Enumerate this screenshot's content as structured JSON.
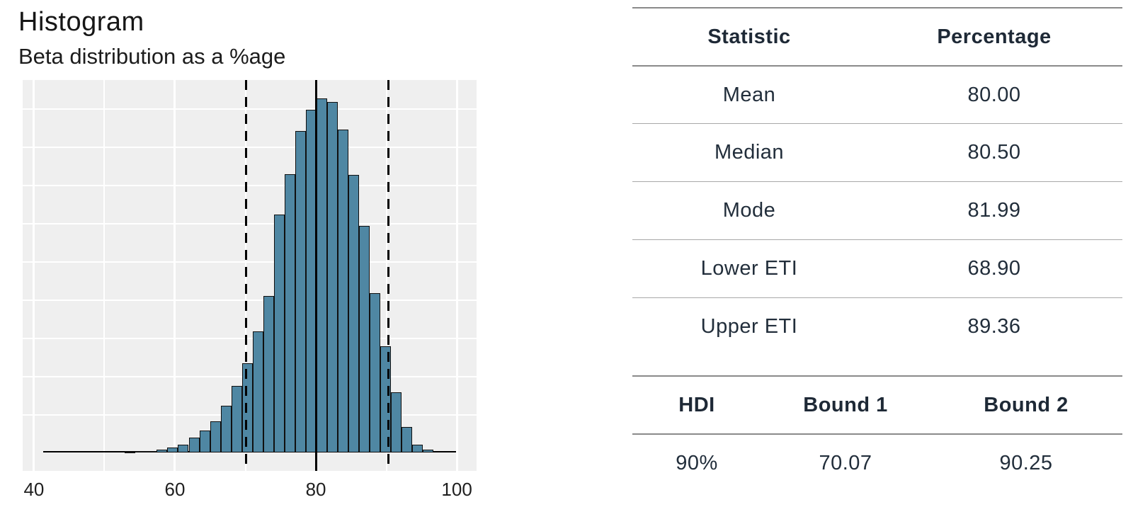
{
  "chart_data": {
    "type": "bar",
    "title": "Histogram",
    "subtitle": "Beta distribution as a %age",
    "xlabel": "",
    "ylabel": "",
    "x_ticks": [
      40,
      60,
      80,
      100
    ],
    "x_axis_range": [
      38.4,
      102.8
    ],
    "grid": true,
    "bin_start": 52.9,
    "bin_width": 1.51,
    "bar_heights_rel": [
      0.002,
      0.004,
      0.004,
      0.008,
      0.014,
      0.022,
      0.042,
      0.062,
      0.088,
      0.132,
      0.188,
      0.252,
      0.342,
      0.442,
      0.672,
      0.786,
      0.908,
      0.968,
      1.0,
      0.99,
      0.912,
      0.784,
      0.64,
      0.45,
      0.3,
      0.17,
      0.072,
      0.022,
      0.008
    ],
    "baseline_span": [
      41.3,
      99.9
    ],
    "mean_line": 80,
    "dashed_lines": [
      70.07,
      90.25
    ],
    "colors": {
      "bar_fill": "#4f87a3",
      "bar_stroke": "#101010",
      "panel_bg": "#efefef",
      "grid": "#ffffff",
      "reference_lines": "#000000"
    }
  },
  "tables": {
    "stats": {
      "headers": [
        "Statistic",
        "Percentage"
      ],
      "rows": [
        {
          "label": "Mean",
          "value": "80.00"
        },
        {
          "label": "Median",
          "value": "80.50"
        },
        {
          "label": "Mode",
          "value": "81.99"
        },
        {
          "label": "Lower ETI",
          "value": "68.90"
        },
        {
          "label": "Upper ETI",
          "value": "89.36"
        }
      ]
    },
    "hdi": {
      "headers": [
        "HDI",
        "Bound 1",
        "Bound 2"
      ],
      "rows": [
        {
          "hdi": "90%",
          "bound1": "70.07",
          "bound2": "90.25"
        }
      ]
    }
  }
}
